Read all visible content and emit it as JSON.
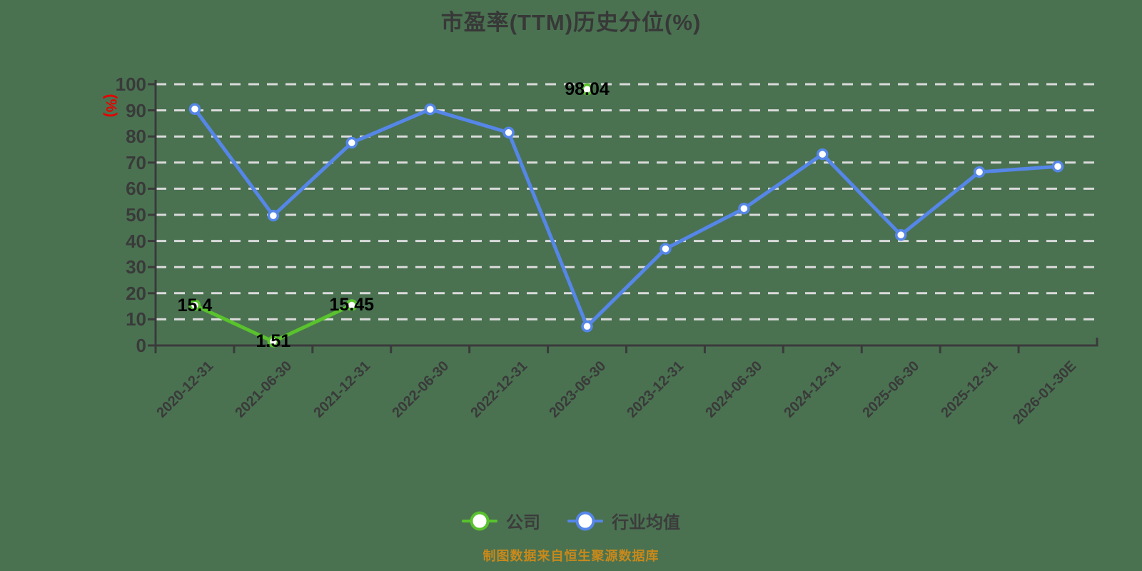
{
  "title": "市盈率(TTM)历史分位(%)",
  "y_axis": {
    "unit": "(%)",
    "unit_color": "#e60000",
    "ticks": [
      0,
      10,
      20,
      30,
      40,
      50,
      60,
      70,
      80,
      90,
      100
    ]
  },
  "x_axis": {
    "categories": [
      "2020-12-31",
      "2021-06-30",
      "2021-12-31",
      "2022-06-30",
      "2022-12-31",
      "2023-06-30",
      "2023-12-31",
      "2024-06-30",
      "2024-12-31",
      "2025-06-30",
      "2025-12-31",
      "2026-01-30E"
    ]
  },
  "chart_data": {
    "type": "line",
    "title": "市盈率(TTM)历史分位(%)",
    "xlabel": "",
    "ylabel": "(%)",
    "ylim": [
      0,
      100
    ],
    "grid": "horizontal-dashed",
    "legend_position": "bottom-center",
    "categories": [
      "2020-12-31",
      "2021-06-30",
      "2021-12-31",
      "2022-06-30",
      "2022-12-31",
      "2023-06-30",
      "2023-12-31",
      "2024-06-30",
      "2024-12-31",
      "2025-06-30",
      "2025-12-31",
      "2026-01-30E"
    ],
    "series": [
      {
        "key": "company",
        "name": "公司",
        "color": "#59c22d",
        "values": [
          15.4,
          1.51,
          15.45,
          null,
          null,
          98.04,
          null,
          null,
          null,
          null,
          null,
          null
        ],
        "point_labels": [
          "15.4",
          "1.51",
          "15.45",
          null,
          null,
          "98.04",
          null,
          null,
          null,
          null,
          null,
          null
        ]
      },
      {
        "key": "industry",
        "name": "行业均值",
        "color": "#5586e8",
        "values": [
          90.5,
          49.7,
          77.6,
          90.4,
          81.5,
          7.3,
          37.0,
          52.4,
          73.2,
          42.3,
          66.4,
          68.5
        ],
        "point_labels": [
          null,
          null,
          null,
          null,
          null,
          null,
          null,
          null,
          null,
          null,
          null,
          null
        ]
      }
    ]
  },
  "legend": {
    "items": [
      {
        "key": "company",
        "label": "公司",
        "color": "#59c22d"
      },
      {
        "key": "industry",
        "label": "行业均值",
        "color": "#5586e8"
      }
    ]
  },
  "footer": {
    "text": "制图数据来自恒生聚源数据库",
    "color": "#c9891a"
  },
  "colors": {
    "background": "#4a7251",
    "grid": "#dadada",
    "axis": "#3a3a3a",
    "tick_label": "#3a3a3a",
    "value_label": "#000000"
  }
}
